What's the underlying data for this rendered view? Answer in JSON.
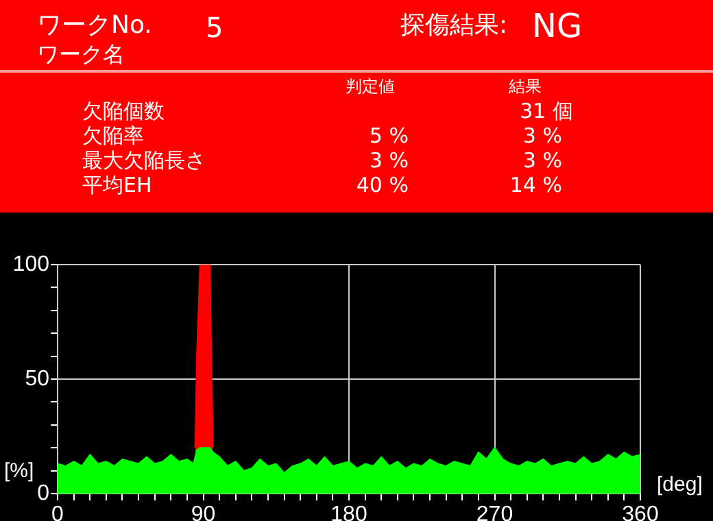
{
  "chart_data": {
    "type": "area",
    "xlabel": "[deg]",
    "ylabel": "[%]",
    "annotations": [
      "ワークNo.",
      "5",
      "探傷結果:",
      "NG",
      "ワーク名",
      "判定値",
      "結果",
      "欠陥個数",
      "31 個",
      "欠陥率",
      "5 %",
      "3 %",
      "最大欠陥長さ",
      "3 %",
      "3 %",
      "平均EH",
      "40 %",
      "14 %"
    ],
    "xlim": [
      0,
      360
    ],
    "ylim": [
      0,
      100
    ],
    "xticks": [
      0,
      {
        "value": 10,
        "label": null
      },
      {
        "value": 20,
        "label": null
      },
      {
        "value": 30,
        "label": null
      },
      {
        "value": 40,
        "label": null
      },
      {
        "value": 50,
        "label": null
      },
      {
        "value": 60,
        "label": null
      },
      {
        "value": 70,
        "label": null
      },
      {
        "value": 80,
        "label": null
      },
      90,
      {
        "value": 100,
        "label": null
      },
      {
        "value": 110,
        "label": null
      },
      {
        "value": 120,
        "label": null
      },
      {
        "value": 130,
        "label": null
      },
      {
        "value": 140,
        "label": null
      },
      {
        "value": 150,
        "label": null
      },
      {
        "value": 160,
        "label": null
      },
      {
        "value": 170,
        "label": null
      },
      180,
      {
        "value": 190,
        "label": null
      },
      {
        "value": 200,
        "label": null
      },
      {
        "value": 210,
        "label": null
      },
      {
        "value": 220,
        "label": null
      },
      {
        "value": 230,
        "label": null
      },
      {
        "value": 240,
        "label": null
      },
      {
        "value": 250,
        "label": null
      },
      {
        "value": 260,
        "label": null
      },
      270,
      {
        "value": 280,
        "label": null
      },
      {
        "value": 290,
        "label": null
      },
      {
        "value": 300,
        "label": null
      },
      {
        "value": 310,
        "label": null
      },
      {
        "value": 320,
        "label": null
      },
      {
        "value": 330,
        "label": null
      },
      {
        "value": 340,
        "label": null
      },
      {
        "value": 350,
        "label": null
      },
      360
    ],
    "yticks": [
      0,
      {
        "value": 10,
        "label": null
      },
      {
        "value": 20,
        "label": null
      },
      {
        "value": 30,
        "label": null
      },
      {
        "value": 40,
        "label": null
      },
      50,
      {
        "value": 60,
        "label": null
      },
      {
        "value": 70,
        "label": null
      },
      {
        "value": 80,
        "label": null
      },
      {
        "value": 90,
        "label": null
      },
      100
    ],
    "grid": true,
    "legend": false,
    "series": [
      {
        "color": "#00ff00",
        "x": [
          0,
          5,
          10,
          15,
          20,
          25,
          30,
          35,
          40,
          45,
          50,
          55,
          60,
          65,
          70,
          75,
          80,
          84,
          86,
          88,
          90,
          94,
          96,
          100,
          105,
          110,
          115,
          120,
          125,
          130,
          135,
          140,
          145,
          150,
          155,
          160,
          165,
          170,
          175,
          180,
          185,
          190,
          195,
          200,
          205,
          210,
          215,
          220,
          225,
          230,
          235,
          240,
          245,
          250,
          255,
          260,
          265,
          270,
          275,
          280,
          285,
          290,
          295,
          300,
          305,
          310,
          315,
          320,
          325,
          330,
          335,
          340,
          345,
          350,
          355,
          360
        ],
        "values": [
          13,
          12,
          14,
          12,
          17,
          13,
          14,
          12,
          15,
          14,
          13,
          16,
          13,
          14,
          17,
          14,
          15,
          13,
          19,
          20,
          20,
          20,
          18,
          16,
          12,
          14,
          10,
          11,
          15,
          12,
          13,
          9,
          12,
          13,
          15,
          12,
          16,
          12,
          13,
          14,
          11,
          13,
          12,
          16,
          12,
          14,
          11,
          13,
          12,
          15,
          13,
          12,
          14,
          13,
          12,
          18,
          15,
          20,
          15,
          13,
          12,
          14,
          13,
          15,
          12,
          13,
          14,
          13,
          16,
          13,
          14,
          17,
          15,
          18,
          16,
          17
        ]
      },
      {
        "color": "#ff0000",
        "x": [
          85,
          86,
          88,
          94,
          95,
          96
        ],
        "values": [
          20,
          60,
          100,
          100,
          60,
          20
        ]
      }
    ]
  }
}
